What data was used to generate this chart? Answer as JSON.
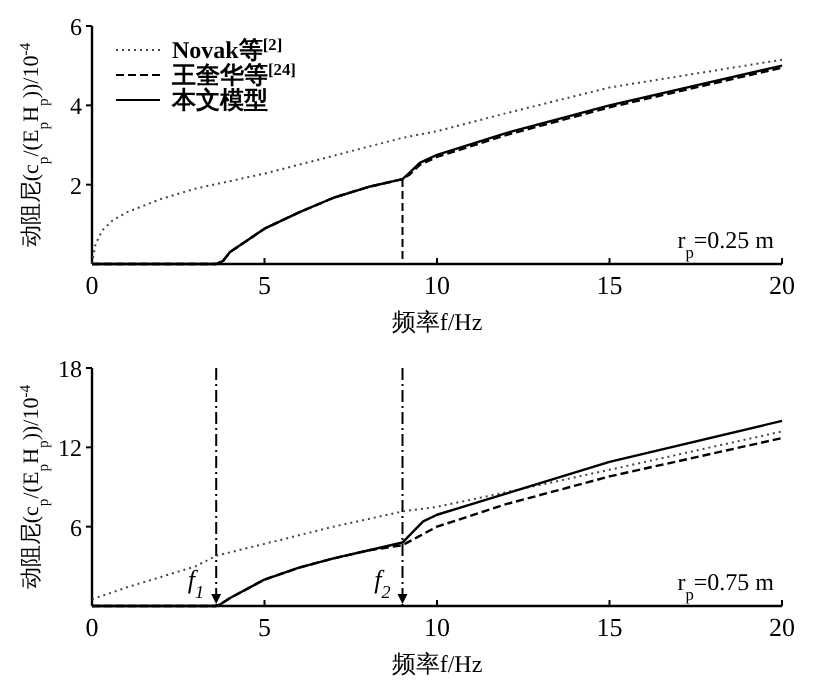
{
  "chart_data": [
    {
      "type": "line",
      "xlabel": "频率f/Hz",
      "ylabel": "动阻尼(c$_{p}$/(E$_{p}$H$_{p}$))/10$^{-4}$",
      "xlim": [
        0,
        20
      ],
      "xticks": [
        0,
        5,
        10,
        15,
        20
      ],
      "ylim": [
        0,
        6
      ],
      "yticks": [
        2,
        4,
        6
      ],
      "legend": "top left",
      "annotations": [
        "r$_{p}$=0.25 m"
      ],
      "ref_lines": [
        {
          "axis": "x",
          "value": 9,
          "line_style": "dashed"
        }
      ],
      "series": [
        {
          "name": "Novak等$^{[2]}$",
          "color": "#444444",
          "line_style": "dotted",
          "x": [
            0,
            0.1,
            0.3,
            0.6,
            1,
            2,
            3,
            5,
            7,
            9,
            10,
            12,
            15,
            20
          ],
          "values": [
            0,
            0.5,
            0.85,
            1.1,
            1.3,
            1.64,
            1.9,
            2.28,
            2.73,
            3.18,
            3.35,
            3.8,
            4.45,
            5.15
          ]
        },
        {
          "name": "王奎华等$^{[24]}$",
          "color": "#000000",
          "line_style": "dashed",
          "x": [
            0,
            3.6,
            3.8,
            4,
            5,
            6,
            7,
            8,
            9,
            9.2,
            9.5,
            10,
            12,
            15,
            20
          ],
          "values": [
            0,
            0,
            0.08,
            0.3,
            0.89,
            1.3,
            1.67,
            1.94,
            2.14,
            2.25,
            2.5,
            2.7,
            3.25,
            3.95,
            4.95
          ]
        },
        {
          "name": "本文模型",
          "color": "#000000",
          "line_style": "solid",
          "x": [
            0,
            3.6,
            3.8,
            4,
            5,
            6,
            7,
            8,
            9,
            9.2,
            9.5,
            10,
            12,
            15,
            20
          ],
          "values": [
            0,
            0,
            0.08,
            0.3,
            0.89,
            1.3,
            1.67,
            1.94,
            2.14,
            2.3,
            2.55,
            2.75,
            3.3,
            4.0,
            5.0
          ]
        }
      ]
    },
    {
      "type": "line",
      "xlabel": "频率f/Hz",
      "ylabel": "动阻尼(c$_{p}$/(E$_{p}$H$_{p}$))/10$^{-4}$",
      "xlim": [
        0,
        20
      ],
      "xticks": [
        0,
        5,
        10,
        15,
        20
      ],
      "ylim": [
        0,
        18
      ],
      "yticks": [
        6,
        12,
        18
      ],
      "annotations": [
        "r$_{p}$=0.75 m"
      ],
      "ref_lines": [
        {
          "axis": "x",
          "value": 3.6,
          "label": "f$_{1}$",
          "line_style": "dashdot"
        },
        {
          "axis": "x",
          "value": 9,
          "label": "f$_{2}$",
          "line_style": "dashdot"
        }
      ],
      "series": [
        {
          "color": "#444444",
          "line_style": "dotted",
          "x": [
            0,
            1,
            2,
            3,
            3.6,
            5,
            7,
            9,
            10,
            12,
            15,
            20
          ],
          "values": [
            0.5,
            1.4,
            2.2,
            3.0,
            3.8,
            4.7,
            6.0,
            7.15,
            7.5,
            8.6,
            10.3,
            13.2
          ]
        },
        {
          "color": "#000000",
          "line_style": "dashed",
          "x": [
            0,
            3.6,
            3.7,
            4,
            5,
            6,
            7,
            8,
            9,
            9.5,
            10,
            12,
            15,
            20
          ],
          "values": [
            0,
            0,
            0.1,
            0.6,
            2.0,
            2.9,
            3.6,
            4.2,
            4.6,
            5.3,
            6.0,
            7.7,
            9.8,
            12.7
          ]
        },
        {
          "color": "#000000",
          "line_style": "solid",
          "x": [
            0,
            3.6,
            3.7,
            4,
            5,
            6,
            7,
            8,
            9,
            9.3,
            9.6,
            10,
            12,
            15,
            20
          ],
          "values": [
            0,
            0,
            0.1,
            0.6,
            2.0,
            2.9,
            3.6,
            4.2,
            4.8,
            5.6,
            6.4,
            6.9,
            8.5,
            10.9,
            14.0
          ]
        }
      ]
    }
  ]
}
